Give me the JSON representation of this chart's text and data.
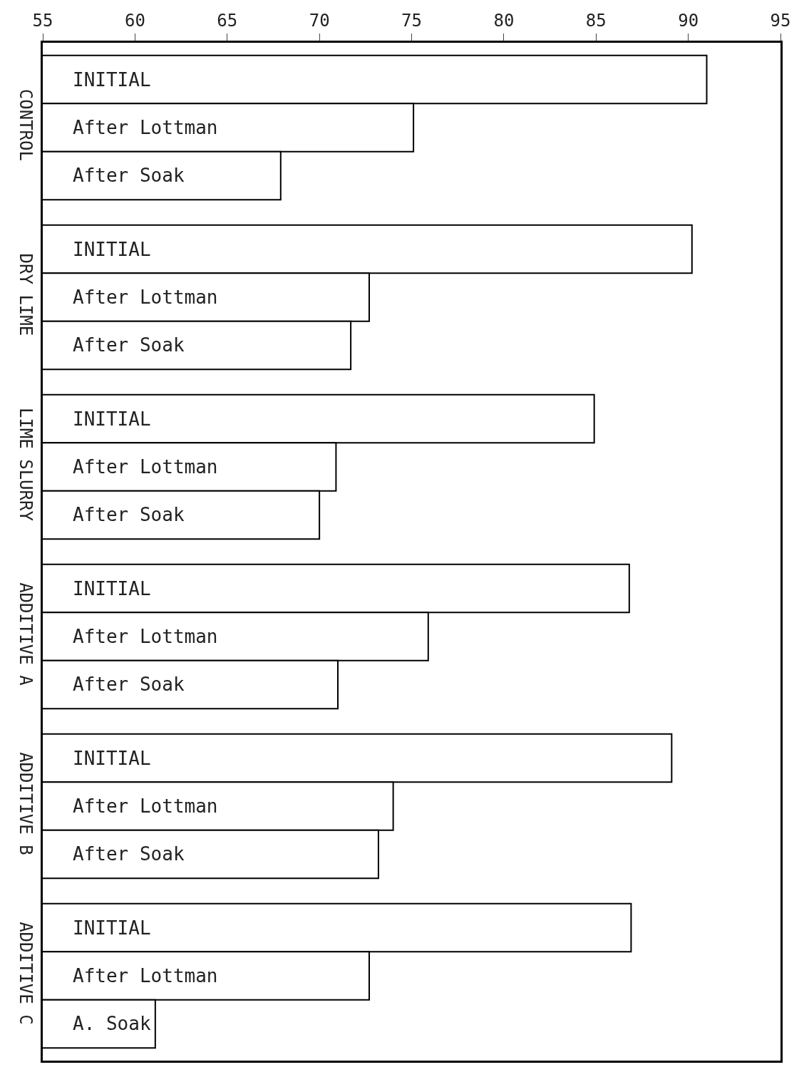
{
  "chart_data": {
    "type": "bar",
    "orientation": "horizontal",
    "categories": [
      "CONTROL",
      "DRY LIME",
      "LIME SLURRY",
      "ADDITIVE A",
      "ADDITIVE B",
      "ADDITIVE C"
    ],
    "series": [
      {
        "color": "#ffffff",
        "values": [
          91.0,
          90.2,
          84.9,
          86.8,
          89.1,
          86.9
        ],
        "value_labels": [
          "INITIAL",
          "INITIAL",
          "INITIAL",
          "INITIAL",
          "INITIAL",
          "INITIAL"
        ]
      },
      {
        "color": "#ffffff",
        "values": [
          75.1,
          72.7,
          70.9,
          75.9,
          74.0,
          72.7
        ],
        "value_labels": [
          "After Lottman",
          "After Lottman",
          "After Lottman",
          "After Lottman",
          "After Lottman",
          "After Lottman"
        ]
      },
      {
        "color": "#ffffff",
        "values": [
          67.9,
          71.7,
          70.0,
          71.0,
          73.2,
          61.1
        ],
        "value_labels": [
          "After Soak",
          "After Soak",
          "After Soak",
          "After Soak",
          "After Soak",
          "A. Soak"
        ]
      }
    ],
    "xlim": [
      55,
      95
    ],
    "xticks": [
      55,
      60,
      65,
      70,
      75,
      80,
      85,
      90,
      95
    ],
    "grid": false
  }
}
